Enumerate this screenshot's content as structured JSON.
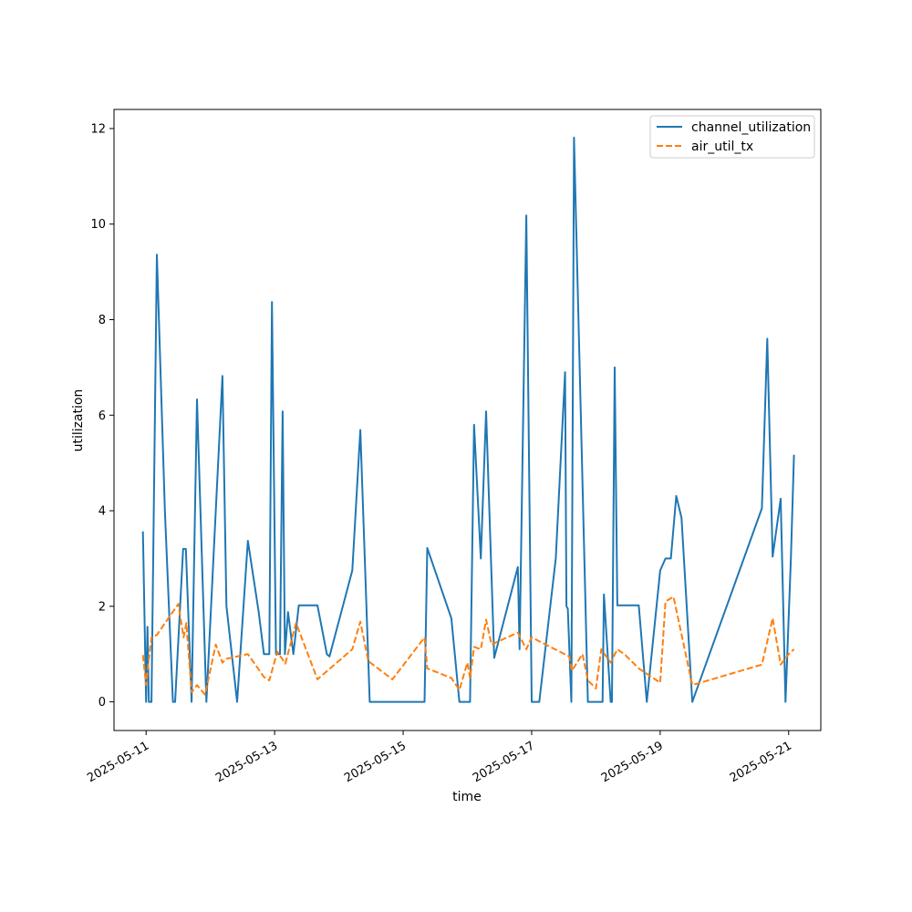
{
  "chart_data": {
    "type": "line",
    "xlabel": "time",
    "ylabel": "utilization",
    "xlim": [
      "2025-05-10T12:00",
      "2025-05-21T12:00"
    ],
    "ylim": [
      -0.6,
      12.4
    ],
    "x_ticks": [
      "2025-05-11",
      "2025-05-13",
      "2025-05-15",
      "2025-05-17",
      "2025-05-19",
      "2025-05-21"
    ],
    "y_ticks": [
      0,
      2,
      4,
      6,
      8,
      10,
      12
    ],
    "grid": false,
    "legend_position": "top-right",
    "series": [
      {
        "name": "channel_utilization",
        "color": "#1f77b4",
        "style": "solid",
        "points": [
          [
            "2025-05-10T22:48",
            3.57
          ],
          [
            "2025-05-11T00:00",
            0.0
          ],
          [
            "2025-05-11T00:30",
            1.57
          ],
          [
            "2025-05-11T01:00",
            0.0
          ],
          [
            "2025-05-11T02:00",
            0.0
          ],
          [
            "2025-05-11T04:00",
            9.36
          ],
          [
            "2025-05-11T07:00",
            4.0
          ],
          [
            "2025-05-11T10:00",
            0.0
          ],
          [
            "2025-05-11T10:50",
            0.0
          ],
          [
            "2025-05-11T13:50",
            3.2
          ],
          [
            "2025-05-11T14:50",
            3.2
          ],
          [
            "2025-05-11T17:00",
            0.0
          ],
          [
            "2025-05-11T19:00",
            6.33
          ],
          [
            "2025-05-11T22:30",
            0.0
          ],
          [
            "2025-05-12T02:00",
            4.0
          ],
          [
            "2025-05-12T04:30",
            6.82
          ],
          [
            "2025-05-12T06:00",
            2.0
          ],
          [
            "2025-05-12T10:00",
            0.0
          ],
          [
            "2025-05-12T14:00",
            3.37
          ],
          [
            "2025-05-12T18:00",
            1.9
          ],
          [
            "2025-05-12T20:00",
            1.0
          ],
          [
            "2025-05-12T22:00",
            1.0
          ],
          [
            "2025-05-12T23:00",
            8.37
          ],
          [
            "2025-05-13T00:30",
            1.0
          ],
          [
            "2025-05-13T02:00",
            1.0
          ],
          [
            "2025-05-13T03:00",
            6.08
          ],
          [
            "2025-05-13T03:50",
            1.0
          ],
          [
            "2025-05-13T05:00",
            1.88
          ],
          [
            "2025-05-13T07:00",
            1.0
          ],
          [
            "2025-05-13T09:00",
            2.02
          ],
          [
            "2025-05-13T16:00",
            2.02
          ],
          [
            "2025-05-13T19:30",
            1.0
          ],
          [
            "2025-05-13T20:30",
            0.95
          ],
          [
            "2025-05-14T05:00",
            2.75
          ],
          [
            "2025-05-14T08:00",
            5.69
          ],
          [
            "2025-05-14T11:30",
            0.0
          ],
          [
            "2025-05-15T08:00",
            0.0
          ],
          [
            "2025-05-15T09:00",
            3.22
          ],
          [
            "2025-05-15T18:00",
            1.75
          ],
          [
            "2025-05-15T21:00",
            0.0
          ],
          [
            "2025-05-16T01:00",
            0.0
          ],
          [
            "2025-05-16T02:30",
            5.8
          ],
          [
            "2025-05-16T05:00",
            3.0
          ],
          [
            "2025-05-16T07:00",
            6.08
          ],
          [
            "2025-05-16T10:00",
            0.92
          ],
          [
            "2025-05-16T18:50",
            2.82
          ],
          [
            "2025-05-16T19:30",
            1.1
          ],
          [
            "2025-05-16T22:00",
            10.18
          ],
          [
            "2025-05-17T00:00",
            0.0
          ],
          [
            "2025-05-17T02:50",
            0.0
          ],
          [
            "2025-05-17T09:00",
            3.0
          ],
          [
            "2025-05-17T12:30",
            6.9
          ],
          [
            "2025-05-17T13:00",
            2.0
          ],
          [
            "2025-05-17T13:30",
            1.95
          ],
          [
            "2025-05-17T14:50",
            0.0
          ],
          [
            "2025-05-17T15:50",
            11.81
          ],
          [
            "2025-05-17T21:00",
            0.0
          ],
          [
            "2025-05-18T02:30",
            0.0
          ],
          [
            "2025-05-18T03:00",
            2.25
          ],
          [
            "2025-05-18T05:30",
            0.0
          ],
          [
            "2025-05-18T06:00",
            0.0
          ],
          [
            "2025-05-18T07:00",
            7.0
          ],
          [
            "2025-05-18T08:00",
            2.02
          ],
          [
            "2025-05-18T16:00",
            2.02
          ],
          [
            "2025-05-18T19:00",
            0.0
          ],
          [
            "2025-05-19T00:00",
            2.75
          ],
          [
            "2025-05-19T02:00",
            3.0
          ],
          [
            "2025-05-19T04:00",
            3.0
          ],
          [
            "2025-05-19T06:00",
            4.31
          ],
          [
            "2025-05-19T08:00",
            3.85
          ],
          [
            "2025-05-19T12:00",
            0.0
          ],
          [
            "2025-05-20T14:00",
            4.05
          ],
          [
            "2025-05-20T16:00",
            7.6
          ],
          [
            "2025-05-20T18:00",
            3.04
          ],
          [
            "2025-05-20T21:00",
            4.25
          ],
          [
            "2025-05-20T22:50",
            0.0
          ],
          [
            "2025-05-21T00:50",
            3.0
          ],
          [
            "2025-05-21T02:00",
            5.17
          ]
        ]
      },
      {
        "name": "air_util_tx",
        "color": "#ff7f0e",
        "style": "dashed",
        "points": [
          [
            "2025-05-10T22:48",
            0.98
          ],
          [
            "2025-05-11T00:00",
            0.35
          ],
          [
            "2025-05-11T01:00",
            0.9
          ],
          [
            "2025-05-11T02:00",
            1.35
          ],
          [
            "2025-05-11T04:00",
            1.4
          ],
          [
            "2025-05-11T12:00",
            2.05
          ],
          [
            "2025-05-11T14:00",
            1.35
          ],
          [
            "2025-05-11T15:00",
            1.65
          ],
          [
            "2025-05-11T17:00",
            0.2
          ],
          [
            "2025-05-11T19:00",
            0.35
          ],
          [
            "2025-05-11T22:00",
            0.15
          ],
          [
            "2025-05-12T02:00",
            1.2
          ],
          [
            "2025-05-12T04:30",
            0.82
          ],
          [
            "2025-05-12T06:00",
            0.9
          ],
          [
            "2025-05-12T14:00",
            1.0
          ],
          [
            "2025-05-12T20:00",
            0.52
          ],
          [
            "2025-05-12T22:00",
            0.45
          ],
          [
            "2025-05-13T01:00",
            1.05
          ],
          [
            "2025-05-13T04:00",
            0.8
          ],
          [
            "2025-05-13T08:00",
            1.65
          ],
          [
            "2025-05-13T16:00",
            0.47
          ],
          [
            "2025-05-14T05:00",
            1.1
          ],
          [
            "2025-05-14T08:00",
            1.68
          ],
          [
            "2025-05-14T11:00",
            0.85
          ],
          [
            "2025-05-14T20:00",
            0.47
          ],
          [
            "2025-05-15T08:00",
            1.35
          ],
          [
            "2025-05-15T09:00",
            0.7
          ],
          [
            "2025-05-15T18:00",
            0.5
          ],
          [
            "2025-05-15T21:00",
            0.25
          ],
          [
            "2025-05-16T00:00",
            0.82
          ],
          [
            "2025-05-16T01:00",
            0.5
          ],
          [
            "2025-05-16T02:30",
            1.15
          ],
          [
            "2025-05-16T05:00",
            1.1
          ],
          [
            "2025-05-16T07:00",
            1.72
          ],
          [
            "2025-05-16T09:00",
            1.2
          ],
          [
            "2025-05-16T18:50",
            1.45
          ],
          [
            "2025-05-16T22:00",
            1.1
          ],
          [
            "2025-05-17T00:00",
            1.35
          ],
          [
            "2025-05-17T14:00",
            0.95
          ],
          [
            "2025-05-17T15:00",
            0.65
          ],
          [
            "2025-05-17T19:00",
            1.0
          ],
          [
            "2025-05-17T21:00",
            0.45
          ],
          [
            "2025-05-18T00:00",
            0.28
          ],
          [
            "2025-05-18T02:00",
            1.1
          ],
          [
            "2025-05-18T05:30",
            0.82
          ],
          [
            "2025-05-18T08:00",
            1.1
          ],
          [
            "2025-05-18T11:00",
            0.98
          ],
          [
            "2025-05-18T16:00",
            0.7
          ],
          [
            "2025-05-19T00:00",
            0.4
          ],
          [
            "2025-05-19T02:00",
            2.1
          ],
          [
            "2025-05-19T05:00",
            2.2
          ],
          [
            "2025-05-19T12:00",
            0.35
          ],
          [
            "2025-05-20T14:00",
            0.78
          ],
          [
            "2025-05-20T18:00",
            1.75
          ],
          [
            "2025-05-20T21:00",
            0.78
          ],
          [
            "2025-05-21T00:00",
            1.0
          ],
          [
            "2025-05-21T02:00",
            1.1
          ]
        ]
      }
    ]
  }
}
